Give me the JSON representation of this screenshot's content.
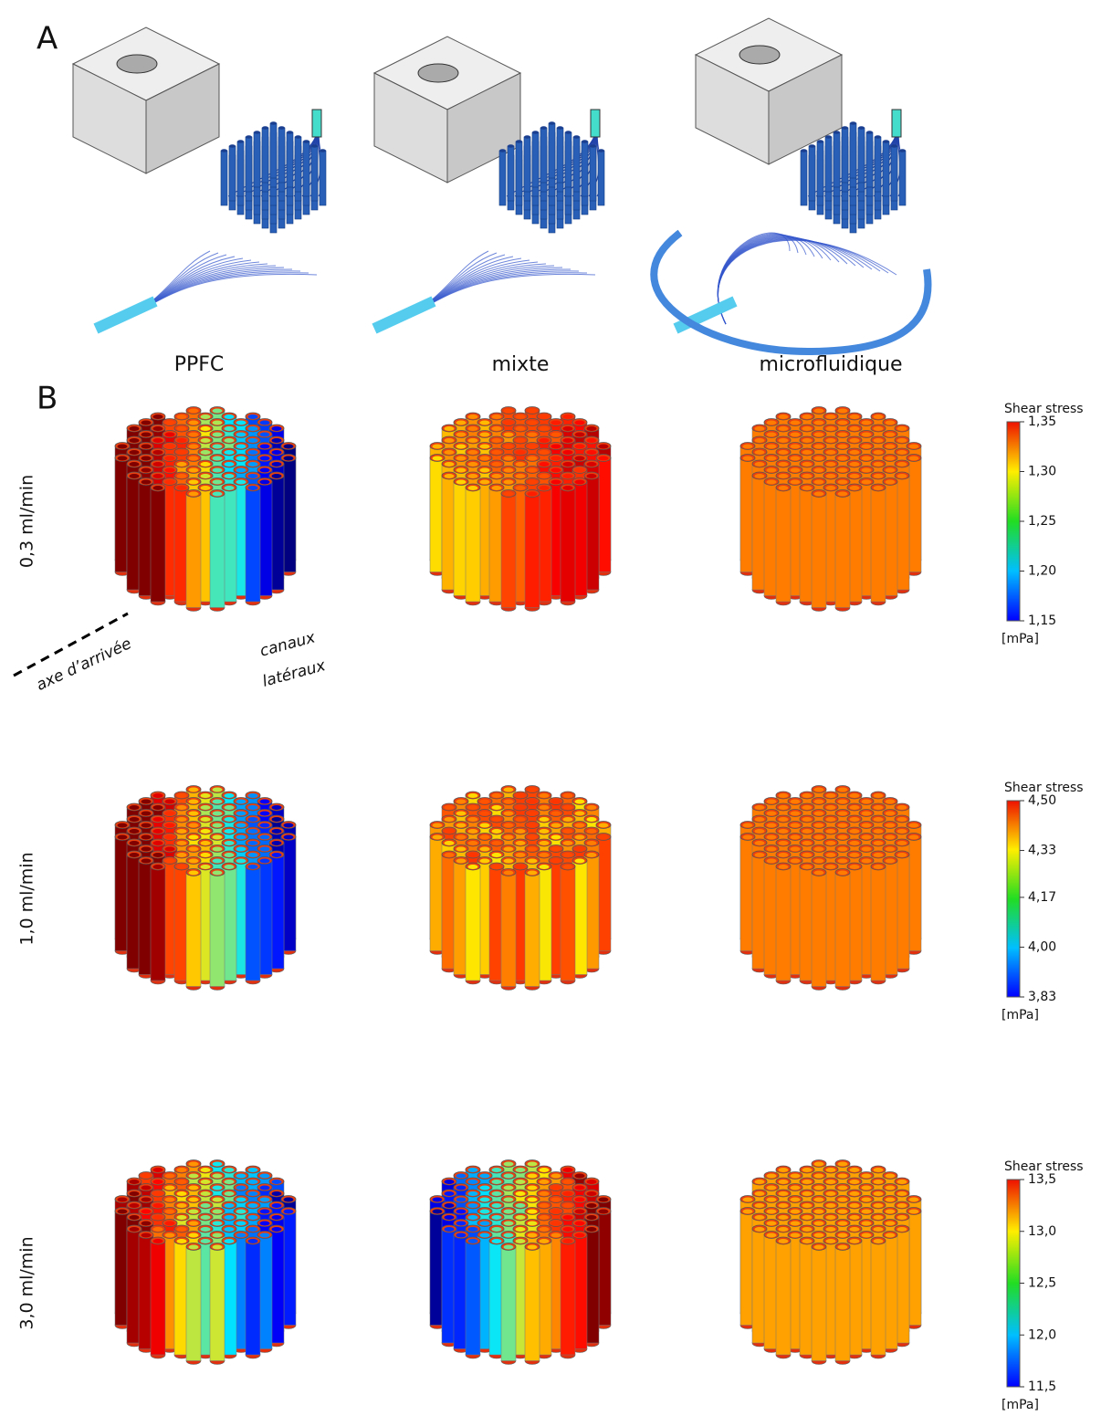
{
  "panel_a": {
    "label": "A",
    "columns": [
      "PPFC",
      "mixte",
      "microfluidique"
    ]
  },
  "panel_b": {
    "label": "B",
    "rows": [
      {
        "label": "0,3 ml/min",
        "colorbar": {
          "title": "Shear stress",
          "unit": "[mPa]",
          "ticks": [
            {
              "value": 1.15,
              "label": "1,15"
            },
            {
              "value": 1.2,
              "label": "1,20"
            },
            {
              "value": 1.25,
              "label": "1,25"
            },
            {
              "value": 1.3,
              "label": "1,30"
            },
            {
              "value": 1.35,
              "label": "1,35"
            }
          ]
        }
      },
      {
        "label": "1,0 ml/min",
        "colorbar": {
          "title": "Shear stress",
          "unit": "[mPa]",
          "ticks": [
            {
              "value": 3.83,
              "label": "3,83"
            },
            {
              "value": 4.0,
              "label": "4,00"
            },
            {
              "value": 4.17,
              "label": "4,17"
            },
            {
              "value": 4.33,
              "label": "4,33"
            },
            {
              "value": 4.5,
              "label": "4,50"
            }
          ]
        }
      },
      {
        "label": "3,0 ml/min",
        "colorbar": {
          "title": "Shear stress",
          "unit": "[mPa]",
          "ticks": [
            {
              "value": 11.5,
              "label": "11,5"
            },
            {
              "value": 12.0,
              "label": "12,0"
            },
            {
              "value": 12.5,
              "label": "12,5"
            },
            {
              "value": 13.0,
              "label": "13,0"
            },
            {
              "value": 13.5,
              "label": "13,5"
            }
          ]
        }
      }
    ],
    "annotations": {
      "inlet_axis": "axe d’arrivée",
      "side_channels": [
        "canaux",
        "latéraux"
      ]
    }
  }
}
